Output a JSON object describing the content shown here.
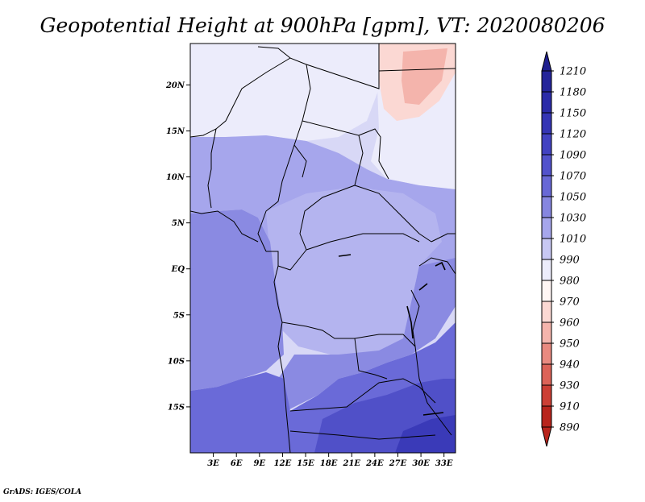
{
  "title": "Geopotential Height at 900hPa [gpm], VT: 2020080206",
  "credit": "GrADS: IGES/COLA",
  "map": {
    "lat_ticks": [
      "20N",
      "15N",
      "10N",
      "5N",
      "EQ",
      "5S",
      "10S",
      "15S"
    ],
    "lon_ticks": [
      "3E",
      "6E",
      "9E",
      "12E",
      "15E",
      "18E",
      "21E",
      "24E",
      "27E",
      "30E",
      "33E"
    ],
    "lon_range": [
      0,
      34.5
    ],
    "lat_range": [
      -20,
      24.5
    ]
  },
  "colorbar": {
    "levels": [
      "1210",
      "1180",
      "1150",
      "1120",
      "1090",
      "1070",
      "1050",
      "1030",
      "1010",
      "990",
      "980",
      "970",
      "960",
      "950",
      "940",
      "930",
      "910",
      "890"
    ],
    "colors": [
      "#1f1f8f",
      "#24249a",
      "#2b2ba8",
      "#3535b5",
      "#4242c2",
      "#5252cc",
      "#6868d6",
      "#8686e0",
      "#a6a6ec",
      "#c8c8f3",
      "#ececfb",
      "#fff6f4",
      "#fbd8d3",
      "#f4b4ac",
      "#e98a80",
      "#dc6358",
      "#cc3f35",
      "#b8241c"
    ]
  }
}
